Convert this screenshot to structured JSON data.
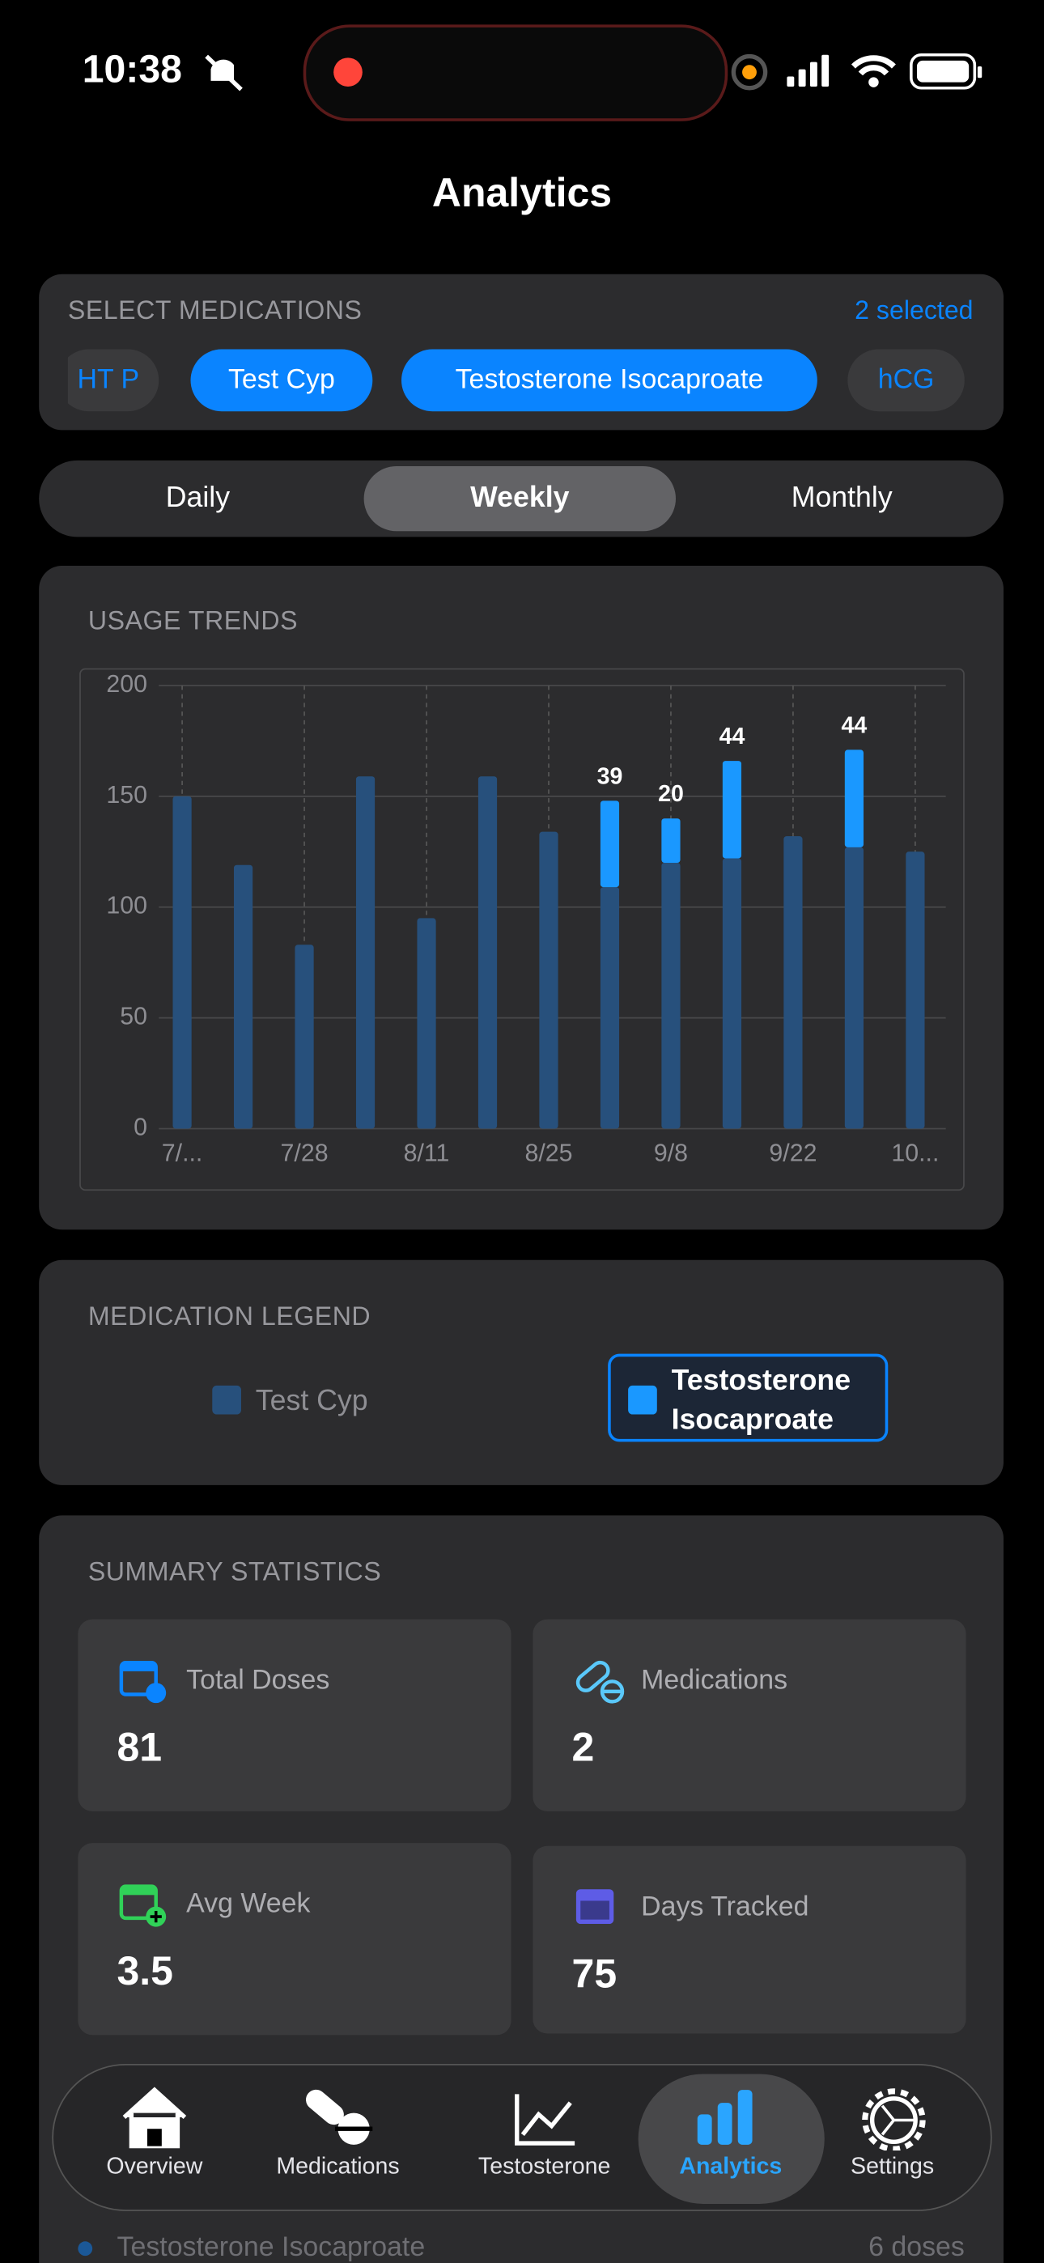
{
  "status_bar": {
    "time": "10:38"
  },
  "header": {
    "title": "Analytics"
  },
  "medication_selector": {
    "label": "SELECT MEDICATIONS",
    "count": "2 selected",
    "chips": [
      {
        "label": "HT P",
        "selected": false
      },
      {
        "label": "Test Cyp",
        "selected": true
      },
      {
        "label": "Testosterone Isocaproate",
        "selected": true
      },
      {
        "label": "hCG",
        "selected": false
      }
    ]
  },
  "period_tabs": {
    "options": [
      "Daily",
      "Weekly",
      "Monthly"
    ],
    "selected": 1
  },
  "chart_data": {
    "type": "stacked-bar",
    "title": "USAGE TRENDS",
    "categories": [
      "7/...",
      null,
      "7/28",
      null,
      "8/11",
      null,
      "8/25",
      null,
      "9/8",
      null,
      "9/22",
      null,
      "10..."
    ],
    "series": [
      {
        "name": "Test Cyp",
        "color": "#27507c",
        "values": [
          150,
          119,
          83,
          159,
          95,
          159,
          134,
          109,
          120,
          122,
          132,
          127,
          125
        ]
      },
      {
        "name": "Testosterone Isocaproate",
        "color": "#1a98ff",
        "show_values": true,
        "values": [
          null,
          null,
          null,
          null,
          null,
          null,
          null,
          39,
          20,
          44,
          null,
          44,
          null
        ]
      }
    ],
    "ylim": [
      0,
      200
    ],
    "yticks": [
      0,
      50,
      100,
      150,
      200
    ],
    "grid": true
  },
  "legend": {
    "title": "MEDICATION LEGEND",
    "highlighted": 1
  },
  "summary": {
    "title": "SUMMARY STATISTICS",
    "cards": [
      {
        "label": "Total Doses",
        "value": 81
      },
      {
        "label": "Medications",
        "value": 2
      },
      {
        "label": "Avg Week",
        "value": 3.5
      },
      {
        "label": "Days Tracked",
        "value": 75
      }
    ]
  },
  "recent": {
    "name": "Testosterone Isocaproate",
    "value": "6 doses"
  },
  "tab_bar": {
    "tabs": [
      "Overview",
      "Medications",
      "Testosterone",
      "Analytics",
      "Settings"
    ],
    "active": 3
  }
}
